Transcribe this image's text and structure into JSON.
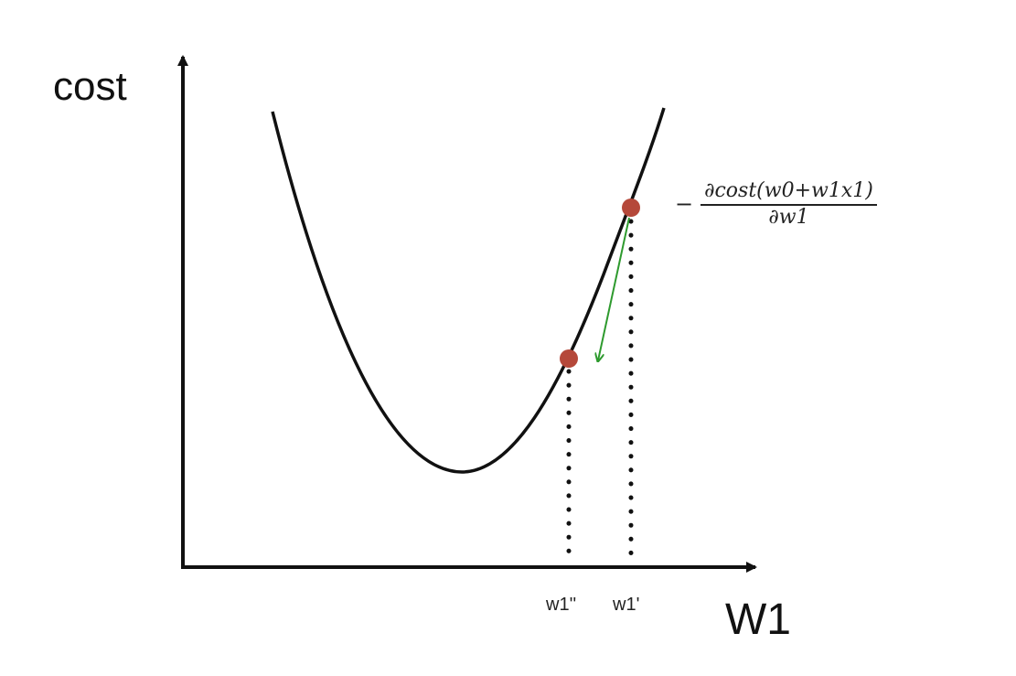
{
  "axes": {
    "y_label": "cost",
    "x_label": "W1"
  },
  "ticks": {
    "w1_double_prime": "w1''",
    "w1_prime": "w1'"
  },
  "formula": {
    "sign": "−",
    "numerator": "∂cost(w0+w1x1)",
    "denominator": "∂w1"
  },
  "colors": {
    "curve": "#111111",
    "point": "#b5483a",
    "arrow": "#2e9a2e",
    "axis": "#111111"
  }
}
